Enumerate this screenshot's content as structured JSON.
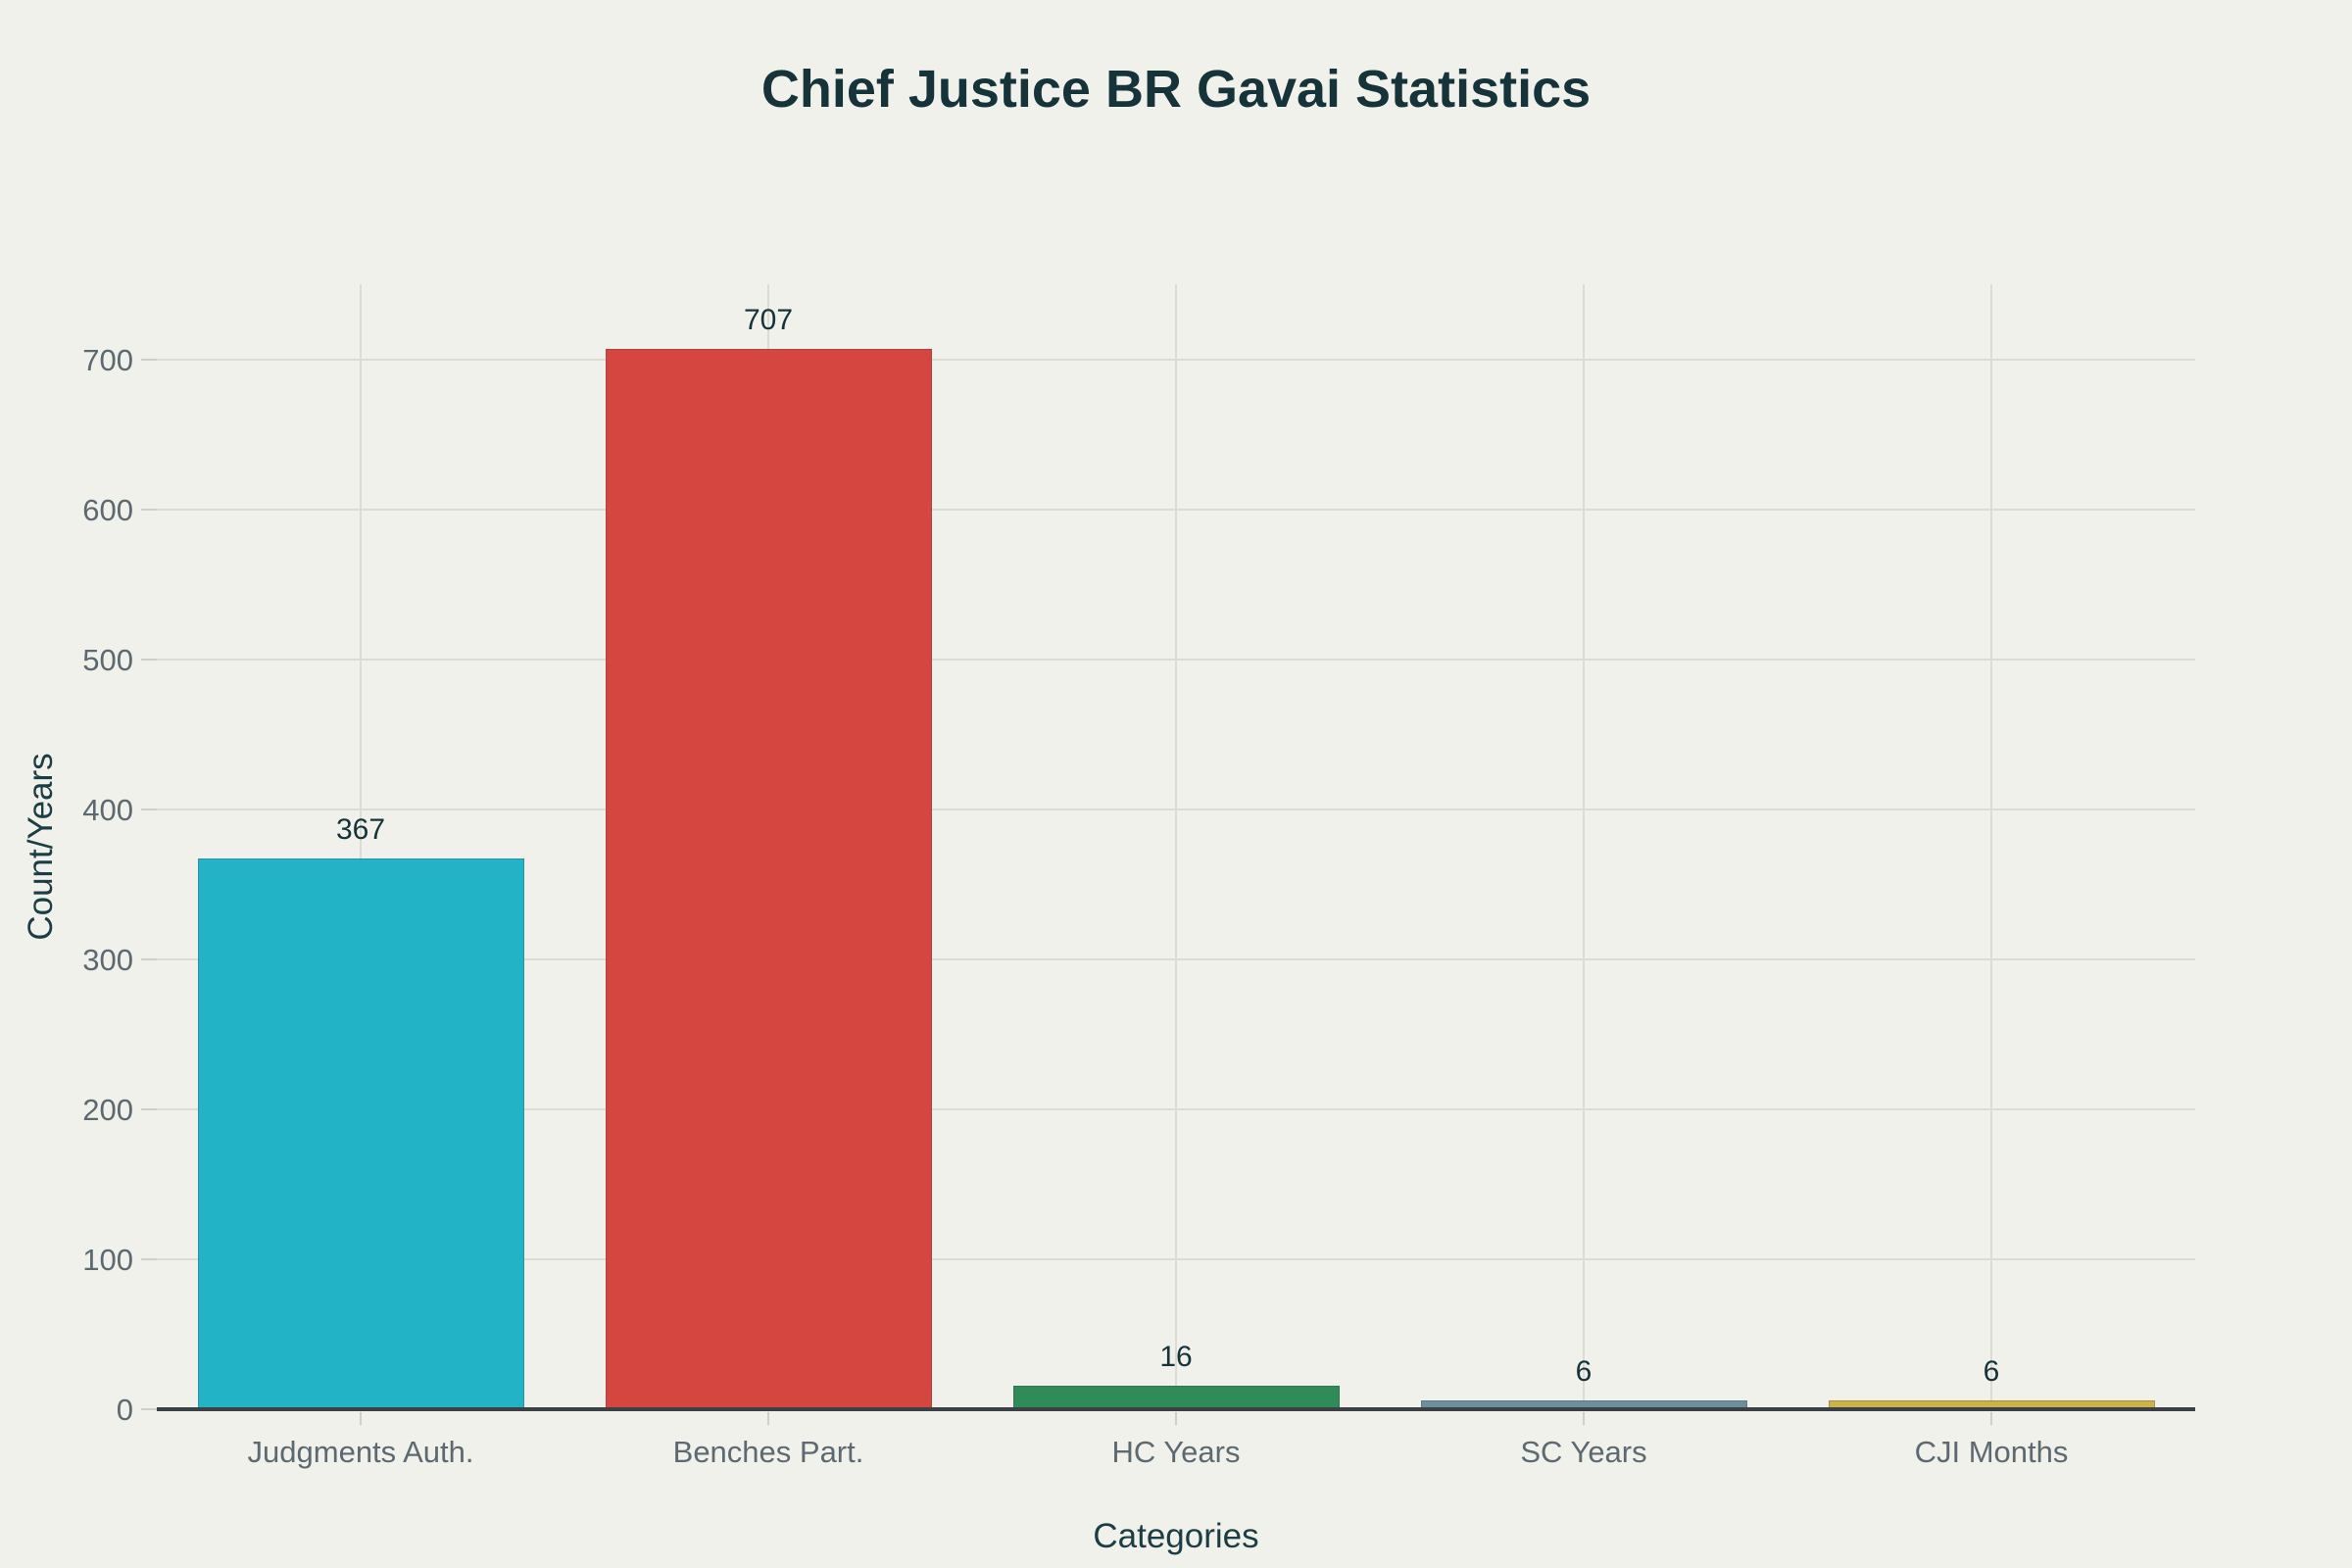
{
  "title": "Chief Justice BR Gavai Statistics",
  "axes": {
    "x_title": "Categories",
    "y_title": "Count/Years"
  },
  "chart_data": {
    "type": "bar",
    "title": "Chief Justice BR Gavai Statistics",
    "categories": [
      "Judgments Auth.",
      "Benches Part.",
      "HC Years",
      "SC Years",
      "CJI Months"
    ],
    "values": [
      367,
      707,
      16,
      6,
      6
    ],
    "value_labels": [
      "367",
      "707",
      "16",
      "6",
      "6"
    ],
    "bar_colors": [
      "#22b3c7",
      "#d64641",
      "#2f8b57",
      "#6b8f9b",
      "#ccb24a"
    ],
    "xlabel": "Categories",
    "ylabel": "Count/Years",
    "ylim": [
      0,
      750
    ],
    "yticks": [
      0,
      100,
      200,
      300,
      400,
      500,
      600,
      700
    ],
    "grid": true,
    "legend": false
  },
  "colors": {
    "background": "#f1f1eb",
    "title_text": "#16333a",
    "axis_title_text": "#1b3e44",
    "tick_label_text": "#5d6970",
    "gridline": "#dddcd3",
    "tick_mark": "#cfcfc7",
    "axis_line": "#3b4045"
  }
}
